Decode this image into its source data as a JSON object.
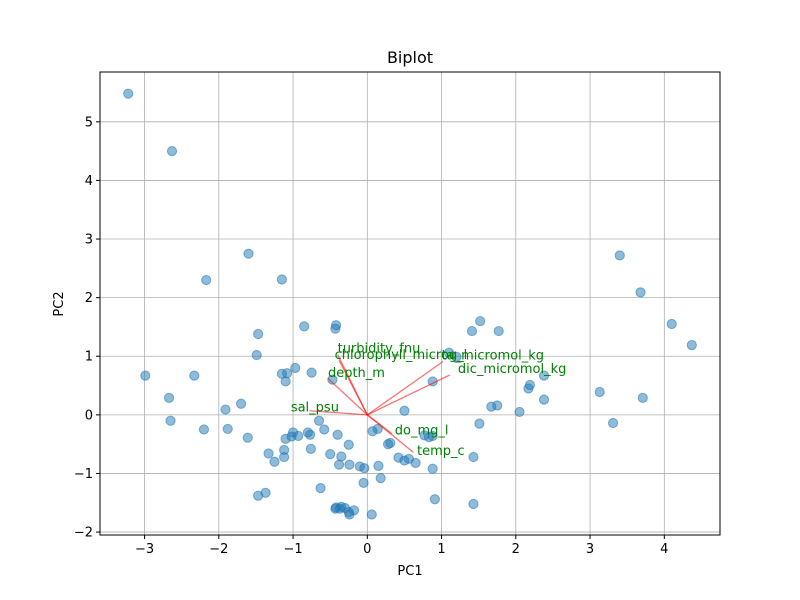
{
  "chart_data": {
    "type": "scatter",
    "title": "Biplot",
    "xlabel": "PC1",
    "ylabel": "PC2",
    "xlim": [
      -3.6,
      4.75
    ],
    "ylim": [
      -2.05,
      5.85
    ],
    "xticks": [
      -3,
      -2,
      -1,
      0,
      1,
      2,
      3,
      4
    ],
    "yticks": [
      -2,
      -1,
      0,
      1,
      2,
      3,
      4,
      5
    ],
    "grid": true,
    "point_color": "#1f77b4",
    "arrow_color": "#ff0000",
    "label_color": "#008000",
    "points": [
      [
        -3.22,
        5.48
      ],
      [
        -2.63,
        4.5
      ],
      [
        -2.17,
        2.3
      ],
      [
        -1.6,
        2.75
      ],
      [
        -1.15,
        2.31
      ],
      [
        3.4,
        2.72
      ],
      [
        3.68,
        2.09
      ],
      [
        4.1,
        1.55
      ],
      [
        4.37,
        1.19
      ],
      [
        -0.42,
        1.53
      ],
      [
        -0.43,
        1.47
      ],
      [
        -0.85,
        1.51
      ],
      [
        -1.47,
        1.38
      ],
      [
        -1.49,
        1.02
      ],
      [
        -1.15,
        0.7
      ],
      [
        -1.08,
        0.71
      ],
      [
        -1.1,
        0.57
      ],
      [
        -0.97,
        0.8
      ],
      [
        -0.75,
        0.72
      ],
      [
        -0.47,
        0.6
      ],
      [
        -2.99,
        0.67
      ],
      [
        -2.33,
        0.67
      ],
      [
        -2.67,
        0.29
      ],
      [
        -2.65,
        -0.1
      ],
      [
        -2.2,
        -0.25
      ],
      [
        -1.91,
        0.09
      ],
      [
        -1.88,
        -0.24
      ],
      [
        -1.7,
        0.19
      ],
      [
        -1.61,
        -0.39
      ],
      [
        -1.33,
        -0.66
      ],
      [
        -1.25,
        -0.8
      ],
      [
        -1.12,
        -0.6
      ],
      [
        -1.12,
        -0.72
      ],
      [
        -1.1,
        -0.41
      ],
      [
        -1.0,
        -0.3
      ],
      [
        -1.02,
        -0.37
      ],
      [
        -0.93,
        -0.36
      ],
      [
        -0.8,
        -0.3
      ],
      [
        -0.77,
        -0.34
      ],
      [
        -0.65,
        -0.1
      ],
      [
        -0.58,
        -0.25
      ],
      [
        -0.76,
        -0.58
      ],
      [
        -0.5,
        -0.67
      ],
      [
        -0.4,
        -0.34
      ],
      [
        -0.25,
        -0.51
      ],
      [
        -0.35,
        -0.71
      ],
      [
        -0.38,
        -0.85
      ],
      [
        -0.63,
        -1.25
      ],
      [
        -0.24,
        -0.85
      ],
      [
        -0.1,
        -0.88
      ],
      [
        -0.04,
        -0.91
      ],
      [
        0.15,
        -0.87
      ],
      [
        -0.05,
        -1.16
      ],
      [
        0.18,
        -1.08
      ],
      [
        -0.43,
        -1.6
      ],
      [
        -0.37,
        -1.6
      ],
      [
        -0.3,
        -1.59
      ],
      [
        -0.25,
        -1.66
      ],
      [
        -0.24,
        -1.7
      ],
      [
        -0.18,
        -1.63
      ],
      [
        0.06,
        -1.7
      ],
      [
        -0.42,
        -1.58
      ],
      [
        -0.35,
        -1.57
      ],
      [
        -1.47,
        -1.38
      ],
      [
        -1.37,
        -1.33
      ],
      [
        0.07,
        -0.28
      ],
      [
        0.14,
        -0.24
      ],
      [
        0.28,
        -0.5
      ],
      [
        0.31,
        -0.48
      ],
      [
        0.42,
        -0.73
      ],
      [
        0.5,
        -0.78
      ],
      [
        0.56,
        -0.75
      ],
      [
        0.65,
        -0.82
      ],
      [
        0.77,
        -0.35
      ],
      [
        0.83,
        -0.38
      ],
      [
        0.88,
        -0.36
      ],
      [
        0.88,
        -0.92
      ],
      [
        0.91,
        -1.44
      ],
      [
        1.43,
        -0.72
      ],
      [
        1.51,
        -0.15
      ],
      [
        1.43,
        -1.52
      ],
      [
        0.5,
        0.07
      ],
      [
        0.88,
        0.57
      ],
      [
        1.2,
        0.99
      ],
      [
        1.1,
        1.06
      ],
      [
        1.41,
        1.43
      ],
      [
        1.52,
        1.6
      ],
      [
        1.77,
        1.43
      ],
      [
        1.67,
        0.14
      ],
      [
        1.75,
        0.16
      ],
      [
        2.05,
        0.05
      ],
      [
        2.17,
        0.45
      ],
      [
        2.19,
        0.51
      ],
      [
        2.38,
        0.67
      ],
      [
        2.38,
        0.26
      ],
      [
        3.13,
        0.39
      ],
      [
        3.31,
        -0.14
      ],
      [
        3.71,
        0.29
      ]
    ],
    "loadings": [
      {
        "name": "turbidity_fnu",
        "x": -0.4,
        "y": 1.03
      },
      {
        "name": "chlorophyll_microg_l",
        "x": -0.38,
        "y": 0.93
      },
      {
        "name": "depth_m",
        "x": -0.53,
        "y": 0.62
      },
      {
        "name": "ta_micromol_kg",
        "x": 1.02,
        "y": 0.91
      },
      {
        "name": "dic_micromol_kg",
        "x": 1.11,
        "y": 0.68
      },
      {
        "name": "sal_psu",
        "x": -0.78,
        "y": 0.07
      },
      {
        "name": "do_mg_l",
        "x": 0.33,
        "y": -0.32
      },
      {
        "name": "temp_c",
        "x": 0.62,
        "y": -0.64
      }
    ],
    "label_offsets": {
      "turbidity_fnu": [
        -0.4,
        1.15
      ],
      "chlorophyll_microg_l": [
        -0.44,
        1.04
      ],
      "depth_m": [
        -0.53,
        0.73
      ],
      "ta_micromol_kg": [
        1.0,
        1.03
      ],
      "dic_micromol_kg": [
        1.22,
        0.8
      ],
      "sal_psu": [
        -1.03,
        0.14
      ],
      "do_mg_l": [
        0.37,
        -0.25
      ],
      "temp_c": [
        0.67,
        -0.6
      ]
    }
  }
}
